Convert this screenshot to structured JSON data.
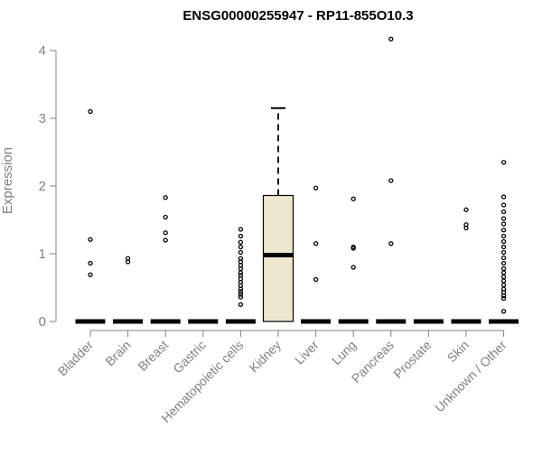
{
  "chart_data": {
    "type": "box",
    "title": "ENSG00000255947 - RP11-855O10.3",
    "xlabel": "",
    "ylabel": "Expression",
    "ylim": [
      0,
      4.2
    ],
    "yticks": [
      0,
      1,
      2,
      3,
      4
    ],
    "ytick_labels": [
      "0",
      "1",
      "2",
      "3",
      "4"
    ],
    "grid": false,
    "legend": "none",
    "colors": {
      "box_fill": "#ede7cf",
      "box_stroke": "#000000",
      "axis": "#808080",
      "outlier": "#000000"
    },
    "categories": [
      "Bladder",
      "Brain",
      "Breast",
      "Gastric",
      "Hematopoietic cells",
      "Kidney",
      "Liver",
      "Lung",
      "Pancreas",
      "Prostate",
      "Skin",
      "Unknown / Other"
    ],
    "boxes": [
      {
        "category": "Bladder",
        "q1": 0,
        "median": 0,
        "q3": 0,
        "whisker_low": 0,
        "whisker_high": 0,
        "outliers": [
          3.1,
          1.21,
          0.86,
          0.69
        ]
      },
      {
        "category": "Brain",
        "q1": 0,
        "median": 0,
        "q3": 0,
        "whisker_low": 0,
        "whisker_high": 0,
        "outliers": [
          0.93,
          0.88
        ]
      },
      {
        "category": "Breast",
        "q1": 0,
        "median": 0,
        "q3": 0,
        "whisker_low": 0,
        "whisker_high": 0,
        "outliers": [
          1.83,
          1.54,
          1.31,
          1.2
        ]
      },
      {
        "category": "Gastric",
        "q1": 0,
        "median": 0,
        "q3": 0,
        "whisker_low": 0,
        "whisker_high": 0,
        "outliers": []
      },
      {
        "category": "Hematopoietic cells",
        "q1": 0,
        "median": 0,
        "q3": 0,
        "whisker_low": 0,
        "whisker_high": 0,
        "outliers": [
          1.36,
          1.26,
          1.17,
          1.1,
          1.02,
          0.93,
          0.88,
          0.83,
          0.78,
          0.72,
          0.68,
          0.63,
          0.58,
          0.53,
          0.48,
          0.44,
          0.4,
          0.36,
          0.25
        ]
      },
      {
        "category": "Kidney",
        "q1": 0,
        "median": 0.98,
        "q3": 1.86,
        "whisker_low": 0,
        "whisker_high": 3.15,
        "outliers": []
      },
      {
        "category": "Liver",
        "q1": 0,
        "median": 0,
        "q3": 0,
        "whisker_low": 0,
        "whisker_high": 0,
        "outliers": [
          1.97,
          1.15,
          0.62
        ]
      },
      {
        "category": "Lung",
        "q1": 0,
        "median": 0,
        "q3": 0,
        "whisker_low": 0,
        "whisker_high": 0,
        "outliers": [
          1.81,
          1.1,
          1.08,
          0.8
        ]
      },
      {
        "category": "Pancreas",
        "q1": 0,
        "median": 0,
        "q3": 0,
        "whisker_low": 0,
        "whisker_high": 0,
        "outliers": [
          4.17,
          2.08,
          1.15
        ]
      },
      {
        "category": "Prostate",
        "q1": 0,
        "median": 0,
        "q3": 0,
        "whisker_low": 0,
        "whisker_high": 0,
        "outliers": []
      },
      {
        "category": "Skin",
        "q1": 0,
        "median": 0,
        "q3": 0,
        "whisker_low": 0,
        "whisker_high": 0,
        "outliers": [
          1.65,
          1.43,
          1.38
        ]
      },
      {
        "category": "Unknown / Other",
        "q1": 0,
        "median": 0,
        "q3": 0,
        "whisker_low": 0,
        "whisker_high": 0,
        "outliers": [
          2.35,
          1.84,
          1.72,
          1.62,
          1.52,
          1.44,
          1.35,
          1.26,
          1.18,
          1.1,
          1.02,
          0.94,
          0.86,
          0.78,
          0.72,
          0.66,
          0.6,
          0.54,
          0.48,
          0.43,
          0.38,
          0.34,
          0.15
        ]
      }
    ]
  }
}
